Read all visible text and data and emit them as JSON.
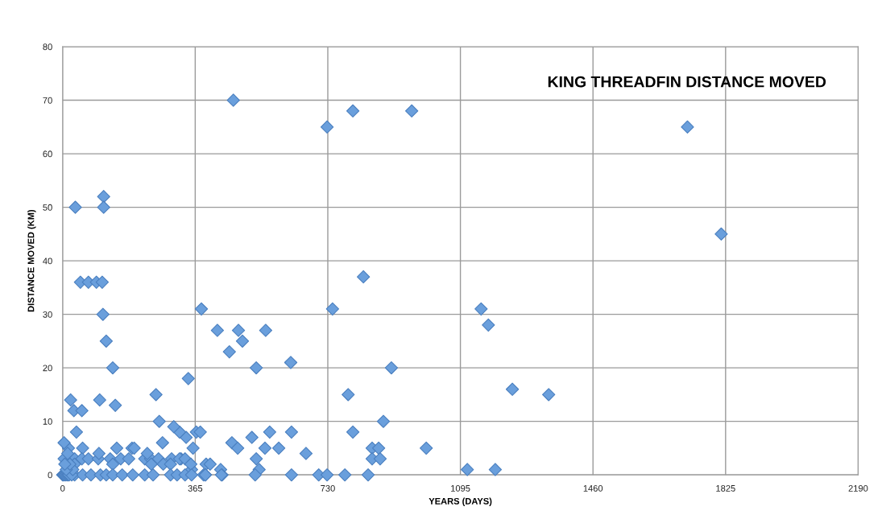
{
  "chart_data": {
    "type": "scatter",
    "title": "KING THREADFIN DISTANCE MOVED",
    "xlabel": "YEARS (DAYS)",
    "ylabel": "DISTANCE MOVED (KM)",
    "xlim": [
      0,
      2190
    ],
    "xticks": [
      0,
      365,
      730,
      1095,
      1460,
      1825,
      2190
    ],
    "ylim": [
      0,
      80
    ],
    "yticks": [
      0,
      10,
      20,
      30,
      40,
      50,
      60,
      70,
      80
    ],
    "grid": true,
    "marker": "diamond",
    "legend": false,
    "series": [
      {
        "color": "#6a9fdc",
        "x": [
          470,
          728,
          799,
          961,
          1720,
          1813,
          35,
          113,
          113,
          49,
          71,
          93,
          109,
          111,
          120,
          138,
          145,
          22,
          31,
          53,
          38,
          102,
          382,
          426,
          484,
          559,
          459,
          495,
          533,
          628,
          743,
          828,
          905,
          1152,
          1172,
          1238,
          1338,
          257,
          346,
          786,
          799,
          883,
          1001,
          1114,
          1191,
          670,
          630,
          570,
          521,
          466,
          482,
          557,
          595,
          533,
          541,
          530,
          630,
          705,
          728,
          777,
          841,
          852,
          870,
          852,
          874,
          435,
          439,
          395,
          406,
          388,
          393,
          368,
          379,
          340,
          355,
          359,
          322,
          306,
          266,
          275,
          191,
          149,
          55,
          16,
          4,
          326,
          4,
          33,
          53,
          71,
          98,
          131,
          160,
          182,
          226,
          242,
          264,
          300,
          322,
          337,
          100,
          233,
          197,
          33,
          138,
          244,
          277,
          297,
          353,
          0,
          33,
          55,
          78,
          104,
          120,
          138,
          164,
          193,
          226,
          249,
          297,
          315,
          337,
          355,
          393,
          437,
          2,
          5,
          8,
          12,
          15,
          18,
          25,
          28,
          10,
          20,
          6,
          14
        ],
        "values": [
          70,
          65,
          68,
          68,
          65,
          45,
          50,
          52,
          50,
          36,
          36,
          36,
          36,
          30,
          25,
          20,
          13,
          14,
          12,
          12,
          8,
          14,
          31,
          27,
          27,
          27,
          23,
          25,
          20,
          21,
          31,
          37,
          20,
          31,
          28,
          16,
          15,
          15,
          18,
          15,
          8,
          10,
          5,
          1,
          1,
          4,
          8,
          8,
          7,
          6,
          5,
          5,
          5,
          3,
          1,
          0,
          0,
          0,
          0,
          0,
          0,
          5,
          5,
          3,
          3,
          1,
          0,
          2,
          2,
          0,
          0,
          8,
          8,
          7,
          1,
          5,
          8,
          9,
          10,
          6,
          5,
          5,
          5,
          5,
          6,
          3,
          3,
          3,
          3,
          3,
          3,
          3,
          3,
          3,
          3,
          3,
          3,
          3,
          3,
          3,
          4,
          4,
          5,
          2,
          2,
          2,
          2,
          2,
          2,
          0,
          0,
          0,
          0,
          0,
          0,
          0,
          0,
          0,
          0,
          0,
          0,
          0,
          0,
          0,
          0,
          0,
          0,
          0,
          0,
          0,
          0,
          0,
          0,
          1,
          1,
          2,
          2,
          4
        ]
      }
    ]
  }
}
